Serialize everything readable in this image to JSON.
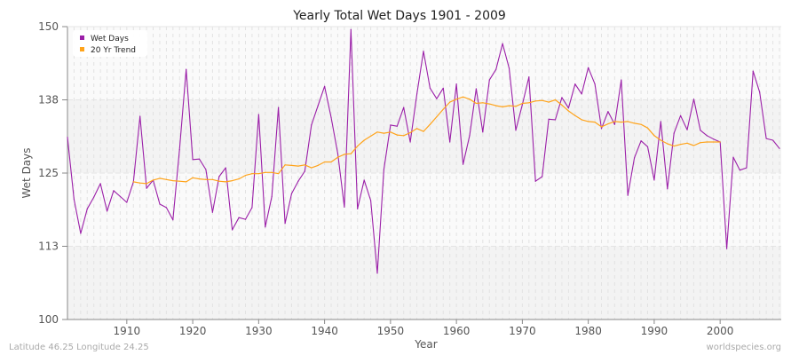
{
  "chart_data": {
    "type": "line",
    "title": "Yearly Total Wet Days 1901 - 2009",
    "xlabel": "Year",
    "ylabel": "Wet Days",
    "xlim": [
      1901,
      2009
    ],
    "ylim": [
      100,
      150
    ],
    "x_ticks": [
      1910,
      1920,
      1930,
      1940,
      1950,
      1960,
      1970,
      1980,
      1990,
      2000
    ],
    "y_ticks": [
      {
        "value": 100,
        "label": "100"
      },
      {
        "value": 112.5,
        "label": "113"
      },
      {
        "value": 125,
        "label": "125"
      },
      {
        "value": 137.5,
        "label": "138"
      },
      {
        "value": 150,
        "label": "150"
      }
    ],
    "grid": true,
    "legend_position": "top-left",
    "series": [
      {
        "name": "Wet Days",
        "color": "#9b1fa8",
        "start_year": 1901,
        "values": [
          131.1,
          120.5,
          114.7,
          118.9,
          120.9,
          123.2,
          118.5,
          122,
          121,
          120,
          123.5,
          134.7,
          122.4,
          123.8,
          119.7,
          119.1,
          117,
          129,
          142.7,
          127.3,
          127.4,
          125.6,
          118.3,
          124.4,
          125.9,
          115.3,
          117.4,
          117.1,
          119.1,
          135,
          115.8,
          121,
          136.2,
          116.4,
          121.5,
          123.6,
          125.3,
          133.2,
          136.5,
          139.8,
          134.5,
          128.3,
          119.2,
          149.5,
          118.9,
          123.8,
          120.3,
          107.9,
          125.6,
          133.2,
          133,
          136.2,
          130.3,
          138.5,
          145.8,
          139.5,
          137.7,
          139.5,
          130.3,
          140.2,
          126.5,
          131.4,
          139.4,
          132,
          140.9,
          142.7,
          147.1,
          142.9,
          132.3,
          136.7,
          141.4,
          123.6,
          124.4,
          134.2,
          134.1,
          137.9,
          136.1,
          140.2,
          138.5,
          143,
          140.2,
          132.6,
          135.5,
          133.3,
          140.9,
          121.2,
          127.6,
          130.5,
          129.5,
          123.8,
          133.8,
          122.3,
          131.8,
          134.8,
          132.4,
          137.6,
          132.3,
          131.4,
          130.8,
          130.3,
          112.1,
          127.7,
          125.5,
          125.9,
          142.4,
          138.8,
          130.9,
          130.6,
          129.2
        ]
      },
      {
        "name": "20 Yr Trend",
        "color": "#ffa31a",
        "start_year": 1911,
        "values": [
          123.5,
          123.3,
          123.2,
          123.8,
          124.1,
          123.9,
          123.7,
          123.6,
          123.5,
          124.2,
          124,
          123.9,
          123.9,
          123.6,
          123.5,
          123.7,
          124,
          124.6,
          124.9,
          124.9,
          125.1,
          125.1,
          124.9,
          126.4,
          126.3,
          126.2,
          126.4,
          125.9,
          126.3,
          126.9,
          126.9,
          127.7,
          128.2,
          128.3,
          129.6,
          130.6,
          131.3,
          132,
          131.8,
          132,
          131.5,
          131.4,
          131.9,
          132.6,
          132.1,
          133.3,
          134.6,
          135.9,
          137.1,
          137.6,
          138,
          137.6,
          136.9,
          137,
          136.8,
          136.5,
          136.3,
          136.5,
          136.4,
          136.9,
          137,
          137.3,
          137.4,
          137.1,
          137.5,
          136.6,
          135.6,
          134.8,
          134.1,
          133.8,
          133.7,
          132.9,
          133.4,
          133.8,
          133.7,
          133.8,
          133.5,
          133.3,
          132.7,
          131.4,
          130.6,
          130,
          129.6,
          129.9,
          130.1,
          129.7,
          130.2,
          130.3,
          130.3,
          130.3
        ]
      }
    ]
  },
  "footer": {
    "location": "Latitude 46.25 Longitude 24.25",
    "source": "worldspecies.org"
  }
}
